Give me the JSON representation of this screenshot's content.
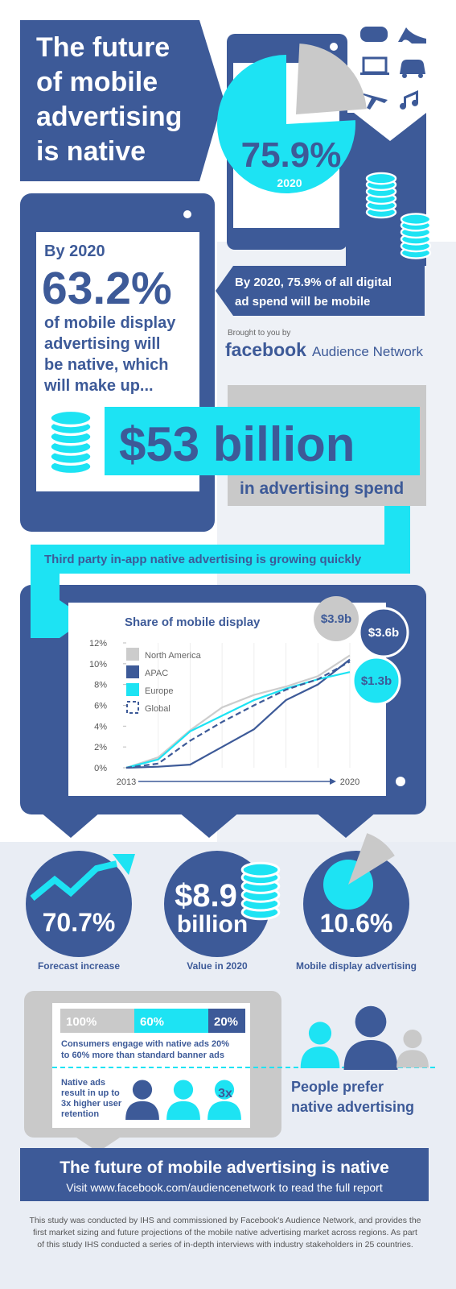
{
  "header": {
    "title_lines": [
      "The future",
      "of mobile",
      "advertising",
      "is native"
    ]
  },
  "top_stat": {
    "value": 75.9,
    "label": "75.9%",
    "caption": "2020",
    "lines": [
      "By 2020, 75.9% of all digital",
      "ad spend will be mobile"
    ]
  },
  "sponsor": {
    "intro": "Brought to you by",
    "brand": "facebook",
    "product": "Audience Network"
  },
  "native_stat": {
    "year": "By 2020",
    "share": "63.2%",
    "lines": [
      "of mobile display",
      "advertising will",
      "be native, which",
      "will make up..."
    ],
    "amount": "$53 billion",
    "amount_caption": "in advertising spend"
  },
  "growth_banner": "Third party in-app native advertising is growing quickly",
  "chart_data": {
    "type": "line",
    "title": "Share of mobile display",
    "categories": [
      "2013",
      null,
      null,
      null,
      null,
      null,
      null,
      "2020"
    ],
    "ylim": [
      0,
      12
    ],
    "yticks": [
      {
        "value": 0,
        "label": "0%"
      },
      {
        "value": 2,
        "label": "2%"
      },
      {
        "value": 4,
        "label": "4%"
      },
      {
        "value": 6,
        "label": "6%"
      },
      {
        "value": 8,
        "label": "8%"
      },
      {
        "value": 10,
        "label": "10%"
      },
      {
        "value": 12,
        "label": "12%"
      }
    ],
    "series": [
      {
        "name": "North America",
        "color": "#cccccc",
        "style": "solid",
        "values": [
          0,
          1.0,
          3.6,
          5.8,
          7.0,
          7.8,
          8.8,
          10.8
        ]
      },
      {
        "name": "APAC",
        "color": "#3d5a98",
        "style": "solid",
        "values": [
          0,
          0.1,
          0.3,
          2.0,
          3.7,
          6.5,
          8.0,
          10.4
        ]
      },
      {
        "name": "Europe",
        "color": "#1de3f3",
        "style": "solid",
        "values": [
          0,
          0.8,
          3.5,
          5.0,
          6.5,
          7.6,
          8.5,
          9.2
        ]
      },
      {
        "name": "Global",
        "color": "#3d5a98",
        "style": "dashed",
        "values": [
          0,
          0.4,
          2.6,
          4.4,
          6.0,
          7.5,
          8.5,
          10.2
        ]
      }
    ],
    "annotations": [
      "$3.9b",
      "$3.6b",
      "$1.3b"
    ]
  },
  "stats": [
    {
      "label": "70.7%",
      "caption": "Forecast increase"
    },
    {
      "label_lines": [
        "$8.9",
        "billion"
      ],
      "caption": "Value in 2020"
    },
    {
      "value": 10.6,
      "label": "10.6%",
      "caption": "Mobile display advertising"
    }
  ],
  "engagement": {
    "segments": [
      {
        "value": 100,
        "label": "100%",
        "color": "#c9c9c9"
      },
      {
        "value": 60,
        "label": "60%",
        "color": "#1de3f3"
      },
      {
        "value": 20,
        "label": "20%",
        "color": "#3d5a98"
      }
    ],
    "lines": [
      "Consumers engage with native ads 20%",
      "to 60% more than standard banner ads"
    ],
    "retention_lines": [
      "Native ads",
      "result in up to",
      "3x higher user",
      "retention"
    ],
    "retention_badge": "3x",
    "prefer_lines": [
      "People prefer",
      "native advertising"
    ]
  },
  "footer": {
    "title": "The future of mobile advertising is native",
    "link": "Visit www.facebook.com/audiencenetwork to read the full report",
    "note_lines": [
      "This study was conducted by IHS and commissioned by Facebook's Audience Network, and provides the",
      "first market sizing and future projections of the mobile native advertising market across regions. As part",
      "of this study IHS conducted a series of in-depth interviews with industry stakeholders in 25 countries."
    ]
  }
}
